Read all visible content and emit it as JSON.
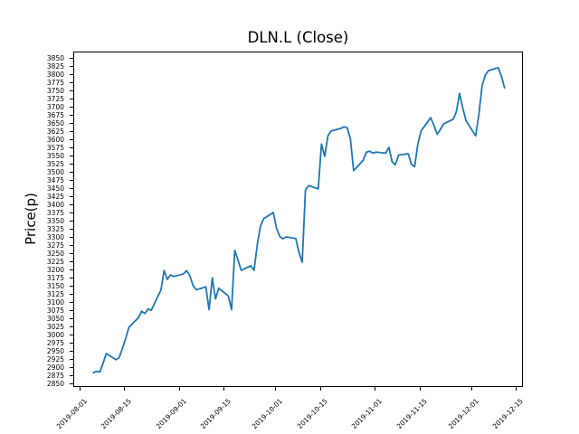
{
  "chart_data": {
    "type": "line",
    "title": "DLN.L (Close)",
    "ylabel": "Price(p)",
    "xlabel": "",
    "grid": false,
    "legend": "none",
    "background_color": "#ffffff",
    "line_color": "#1f77b4",
    "axis_color": "#000000",
    "xlim": [
      "2019-07-30",
      "2019-12-17"
    ],
    "ylim": [
      2839,
      3872
    ],
    "x_ticks": [
      "2019-08-01",
      "2019-08-15",
      "2019-09-01",
      "2019-09-15",
      "2019-10-01",
      "2019-10-15",
      "2019-11-01",
      "2019-11-15",
      "2019-12-01",
      "2019-12-15"
    ],
    "y_ticks": [
      2850,
      2875,
      2900,
      2925,
      2950,
      2975,
      3000,
      3025,
      3050,
      3075,
      3100,
      3125,
      3150,
      3175,
      3200,
      3225,
      3250,
      3275,
      3300,
      3325,
      3350,
      3375,
      3400,
      3425,
      3450,
      3475,
      3500,
      3525,
      3550,
      3575,
      3600,
      3625,
      3650,
      3675,
      3700,
      3725,
      3750,
      3775,
      3800,
      3825,
      3850
    ],
    "series": [
      {
        "name": "Close",
        "dates": [
          "2019-08-05",
          "2019-08-06",
          "2019-08-07",
          "2019-08-08",
          "2019-08-09",
          "2019-08-12",
          "2019-08-13",
          "2019-08-14",
          "2019-08-15",
          "2019-08-16",
          "2019-08-19",
          "2019-08-20",
          "2019-08-21",
          "2019-08-22",
          "2019-08-23",
          "2019-08-26",
          "2019-08-27",
          "2019-08-28",
          "2019-08-29",
          "2019-08-30",
          "2019-09-02",
          "2019-09-03",
          "2019-09-04",
          "2019-09-05",
          "2019-09-06",
          "2019-09-09",
          "2019-09-10",
          "2019-09-11",
          "2019-09-12",
          "2019-09-13",
          "2019-09-16",
          "2019-09-17",
          "2019-09-18",
          "2019-09-19",
          "2019-09-20",
          "2019-09-23",
          "2019-09-24",
          "2019-09-25",
          "2019-09-26",
          "2019-09-27",
          "2019-09-30",
          "2019-10-01",
          "2019-10-02",
          "2019-10-03",
          "2019-10-04",
          "2019-10-07",
          "2019-10-08",
          "2019-10-09",
          "2019-10-10",
          "2019-10-11",
          "2019-10-14",
          "2019-10-15",
          "2019-10-16",
          "2019-10-17",
          "2019-10-18",
          "2019-10-21",
          "2019-10-22",
          "2019-10-23",
          "2019-10-24",
          "2019-10-25",
          "2019-10-28",
          "2019-10-29",
          "2019-10-30",
          "2019-10-31",
          "2019-11-01",
          "2019-11-04",
          "2019-11-05",
          "2019-11-06",
          "2019-11-07",
          "2019-11-08",
          "2019-11-11",
          "2019-11-12",
          "2019-11-13",
          "2019-11-14",
          "2019-11-15",
          "2019-11-18",
          "2019-11-19",
          "2019-11-20",
          "2019-11-21",
          "2019-11-22",
          "2019-11-25",
          "2019-11-26",
          "2019-11-27",
          "2019-11-28",
          "2019-11-29",
          "2019-12-02",
          "2019-12-03",
          "2019-12-04",
          "2019-12-05",
          "2019-12-06",
          "2019-12-09",
          "2019-12-10",
          "2019-12-11"
        ],
        "values": [
          2886,
          2890,
          2888,
          2915,
          2945,
          2926,
          2932,
          2960,
          2990,
          3025,
          3055,
          3075,
          3068,
          3082,
          3078,
          3140,
          3201,
          3173,
          3187,
          3182,
          3190,
          3200,
          3185,
          3155,
          3141,
          3150,
          3080,
          3178,
          3113,
          3146,
          3122,
          3080,
          3262,
          3233,
          3201,
          3215,
          3201,
          3280,
          3337,
          3360,
          3379,
          3330,
          3306,
          3298,
          3304,
          3299,
          3256,
          3226,
          3448,
          3462,
          3452,
          3590,
          3552,
          3615,
          3630,
          3638,
          3643,
          3640,
          3606,
          3508,
          3540,
          3565,
          3568,
          3562,
          3565,
          3562,
          3580,
          3535,
          3526,
          3556,
          3560,
          3528,
          3520,
          3590,
          3630,
          3671,
          3648,
          3620,
          3634,
          3652,
          3666,
          3690,
          3746,
          3700,
          3662,
          3615,
          3680,
          3769,
          3802,
          3816,
          3825,
          3800,
          3763
        ]
      }
    ]
  }
}
